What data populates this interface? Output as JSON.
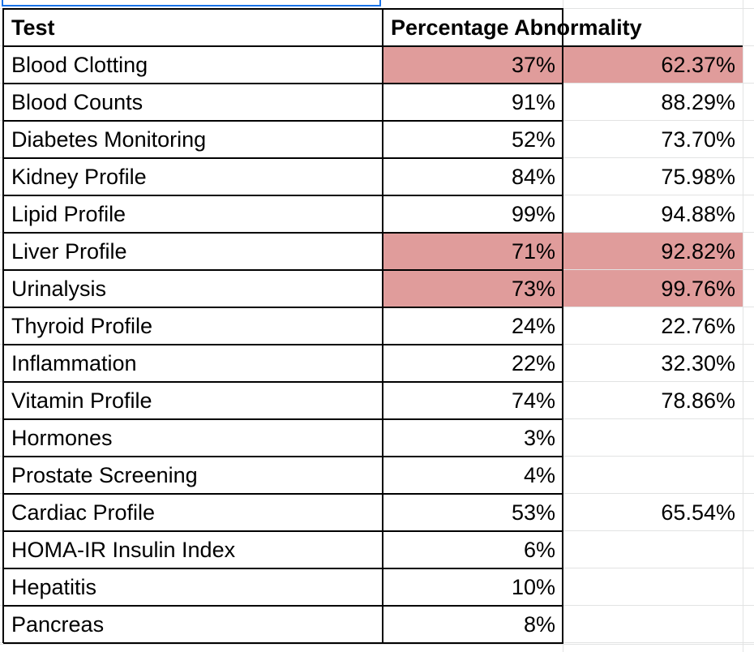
{
  "sheet": {
    "header": {
      "col_a": "Test",
      "col_b": "Percentage Abnormality",
      "col_c": ""
    },
    "highlight_color": "#e09c9b",
    "selection_color": "#1a73e8",
    "rows": [
      {
        "test": "Blood Clotting",
        "pct_b": "37%",
        "pct_c": "62.37%",
        "highlighted": true
      },
      {
        "test": "Blood Counts",
        "pct_b": "91%",
        "pct_c": "88.29%",
        "highlighted": false
      },
      {
        "test": "Diabetes Monitoring",
        "pct_b": "52%",
        "pct_c": "73.70%",
        "highlighted": false
      },
      {
        "test": "Kidney Profile",
        "pct_b": "84%",
        "pct_c": "75.98%",
        "highlighted": false
      },
      {
        "test": "Lipid Profile",
        "pct_b": "99%",
        "pct_c": "94.88%",
        "highlighted": false
      },
      {
        "test": "Liver Profile",
        "pct_b": "71%",
        "pct_c": "92.82%",
        "highlighted": true
      },
      {
        "test": "Urinalysis",
        "pct_b": "73%",
        "pct_c": "99.76%",
        "highlighted": true
      },
      {
        "test": "Thyroid Profile",
        "pct_b": "24%",
        "pct_c": "22.76%",
        "highlighted": false
      },
      {
        "test": "Inflammation",
        "pct_b": "22%",
        "pct_c": "32.30%",
        "highlighted": false
      },
      {
        "test": "Vitamin Profile",
        "pct_b": "74%",
        "pct_c": "78.86%",
        "highlighted": false
      },
      {
        "test": "Hormones",
        "pct_b": "3%",
        "pct_c": "",
        "highlighted": false
      },
      {
        "test": "Prostate Screening",
        "pct_b": "4%",
        "pct_c": "",
        "highlighted": false
      },
      {
        "test": "Cardiac Profile",
        "pct_b": "53%",
        "pct_c": "65.54%",
        "highlighted": false
      },
      {
        "test": "HOMA-IR Insulin Index",
        "pct_b": "6%",
        "pct_c": "",
        "highlighted": false
      },
      {
        "test": "Hepatitis",
        "pct_b": "10%",
        "pct_c": "",
        "highlighted": false
      },
      {
        "test": "Pancreas",
        "pct_b": "8%",
        "pct_c": "",
        "highlighted": false
      }
    ]
  }
}
